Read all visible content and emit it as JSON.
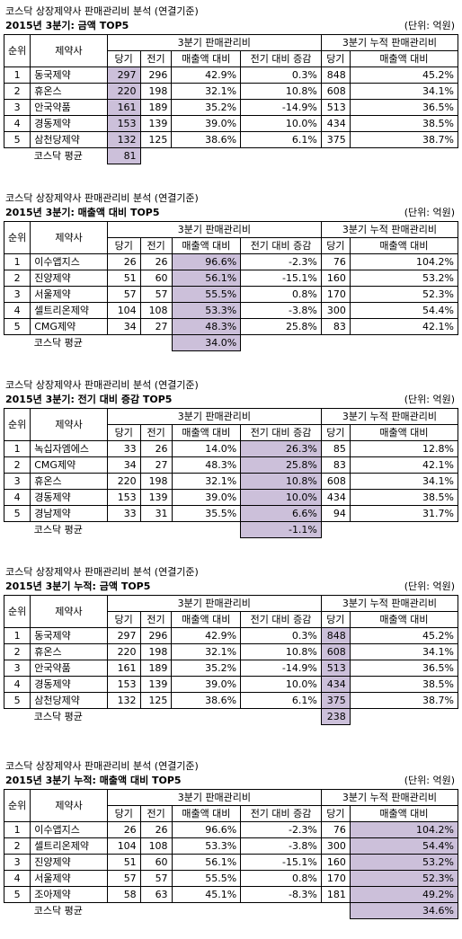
{
  "report_title": "코스닥 상장제약사 판매관리비 분석 (연결기준)",
  "unit": "(단위: 억원)",
  "headers": {
    "rank": "순위",
    "company": "제약사",
    "q3_group": "3분기 판매관리비",
    "cum_group": "3분기 누적 판매관리비",
    "current": "당기",
    "previous": "전기",
    "ratio": "매출액 대비",
    "change": "전기 대비 증감",
    "cum_current": "당기",
    "cum_ratio": "매출액 대비"
  },
  "avg_label": "코스닥 평균",
  "sections": [
    {
      "subtitle": "2015년 3분기:  금액 TOP5",
      "highlight": "current",
      "avg_value": "81",
      "rows": [
        {
          "rank": "1",
          "company": "동국제약",
          "current": "297",
          "previous": "296",
          "ratio": "42.9%",
          "change": "0.3%",
          "cum_current": "848",
          "cum_ratio": "45.2%"
        },
        {
          "rank": "2",
          "company": "휴온스",
          "current": "220",
          "previous": "198",
          "ratio": "32.1%",
          "change": "10.8%",
          "cum_current": "608",
          "cum_ratio": "34.1%"
        },
        {
          "rank": "3",
          "company": "안국약품",
          "current": "161",
          "previous": "189",
          "ratio": "35.2%",
          "change": "-14.9%",
          "cum_current": "513",
          "cum_ratio": "36.5%"
        },
        {
          "rank": "4",
          "company": "경동제약",
          "current": "153",
          "previous": "139",
          "ratio": "39.0%",
          "change": "10.0%",
          "cum_current": "434",
          "cum_ratio": "38.5%"
        },
        {
          "rank": "5",
          "company": "삼천당제약",
          "current": "132",
          "previous": "125",
          "ratio": "38.6%",
          "change": "6.1%",
          "cum_current": "375",
          "cum_ratio": "38.7%"
        }
      ]
    },
    {
      "subtitle": "2015년 3분기:  매출액 대비 TOP5",
      "highlight": "ratio",
      "avg_value": "34.0%",
      "rows": [
        {
          "rank": "1",
          "company": "이수앱지스",
          "current": "26",
          "previous": "26",
          "ratio": "96.6%",
          "change": "-2.3%",
          "cum_current": "76",
          "cum_ratio": "104.2%"
        },
        {
          "rank": "2",
          "company": "진양제약",
          "current": "51",
          "previous": "60",
          "ratio": "56.1%",
          "change": "-15.1%",
          "cum_current": "160",
          "cum_ratio": "53.2%"
        },
        {
          "rank": "3",
          "company": "서울제약",
          "current": "57",
          "previous": "57",
          "ratio": "55.5%",
          "change": "0.8%",
          "cum_current": "170",
          "cum_ratio": "52.3%"
        },
        {
          "rank": "4",
          "company": "셀트리온제약",
          "current": "104",
          "previous": "108",
          "ratio": "53.3%",
          "change": "-3.8%",
          "cum_current": "300",
          "cum_ratio": "54.4%"
        },
        {
          "rank": "5",
          "company": "CMG제약",
          "current": "34",
          "previous": "27",
          "ratio": "48.3%",
          "change": "25.8%",
          "cum_current": "83",
          "cum_ratio": "42.1%"
        }
      ]
    },
    {
      "subtitle": "2015년 3분기:  전기 대비 증감 TOP5",
      "highlight": "change",
      "avg_value": "-1.1%",
      "rows": [
        {
          "rank": "1",
          "company": "녹십자엠에스",
          "current": "33",
          "previous": "26",
          "ratio": "14.0%",
          "change": "26.3%",
          "cum_current": "85",
          "cum_ratio": "12.8%"
        },
        {
          "rank": "2",
          "company": "CMG제약",
          "current": "34",
          "previous": "27",
          "ratio": "48.3%",
          "change": "25.8%",
          "cum_current": "83",
          "cum_ratio": "42.1%"
        },
        {
          "rank": "3",
          "company": "휴온스",
          "current": "220",
          "previous": "198",
          "ratio": "32.1%",
          "change": "10.8%",
          "cum_current": "608",
          "cum_ratio": "34.1%"
        },
        {
          "rank": "4",
          "company": "경동제약",
          "current": "153",
          "previous": "139",
          "ratio": "39.0%",
          "change": "10.0%",
          "cum_current": "434",
          "cum_ratio": "38.5%"
        },
        {
          "rank": "5",
          "company": "경남제약",
          "current": "33",
          "previous": "31",
          "ratio": "35.5%",
          "change": "6.6%",
          "cum_current": "94",
          "cum_ratio": "31.7%"
        }
      ]
    },
    {
      "subtitle": "2015년 3분기 누적:  금액 TOP5",
      "highlight": "cum_current",
      "avg_value": "238",
      "rows": [
        {
          "rank": "1",
          "company": "동국제약",
          "current": "297",
          "previous": "296",
          "ratio": "42.9%",
          "change": "0.3%",
          "cum_current": "848",
          "cum_ratio": "45.2%"
        },
        {
          "rank": "2",
          "company": "휴온스",
          "current": "220",
          "previous": "198",
          "ratio": "32.1%",
          "change": "10.8%",
          "cum_current": "608",
          "cum_ratio": "34.1%"
        },
        {
          "rank": "3",
          "company": "안국약품",
          "current": "161",
          "previous": "189",
          "ratio": "35.2%",
          "change": "-14.9%",
          "cum_current": "513",
          "cum_ratio": "36.5%"
        },
        {
          "rank": "4",
          "company": "경동제약",
          "current": "153",
          "previous": "139",
          "ratio": "39.0%",
          "change": "10.0%",
          "cum_current": "434",
          "cum_ratio": "38.5%"
        },
        {
          "rank": "5",
          "company": "삼천당제약",
          "current": "132",
          "previous": "125",
          "ratio": "38.6%",
          "change": "6.1%",
          "cum_current": "375",
          "cum_ratio": "38.7%"
        }
      ]
    },
    {
      "subtitle": "2015년 3분기 누적:  매출액 대비 TOP5",
      "highlight": "cum_ratio",
      "avg_value": "34.6%",
      "rows": [
        {
          "rank": "1",
          "company": "이수앱지스",
          "current": "26",
          "previous": "26",
          "ratio": "96.6%",
          "change": "-2.3%",
          "cum_current": "76",
          "cum_ratio": "104.2%"
        },
        {
          "rank": "2",
          "company": "셀트리온제약",
          "current": "104",
          "previous": "108",
          "ratio": "53.3%",
          "change": "-3.8%",
          "cum_current": "300",
          "cum_ratio": "54.4%"
        },
        {
          "rank": "3",
          "company": "진양제약",
          "current": "51",
          "previous": "60",
          "ratio": "56.1%",
          "change": "-15.1%",
          "cum_current": "160",
          "cum_ratio": "53.2%"
        },
        {
          "rank": "4",
          "company": "서울제약",
          "current": "57",
          "previous": "57",
          "ratio": "55.5%",
          "change": "0.8%",
          "cum_current": "170",
          "cum_ratio": "52.3%"
        },
        {
          "rank": "5",
          "company": "조아제약",
          "current": "58",
          "previous": "63",
          "ratio": "45.1%",
          "change": "-8.3%",
          "cum_current": "181",
          "cum_ratio": "49.2%"
        }
      ]
    }
  ],
  "colors": {
    "highlight": "#ccc0da",
    "border": "#000000",
    "background": "#ffffff"
  }
}
